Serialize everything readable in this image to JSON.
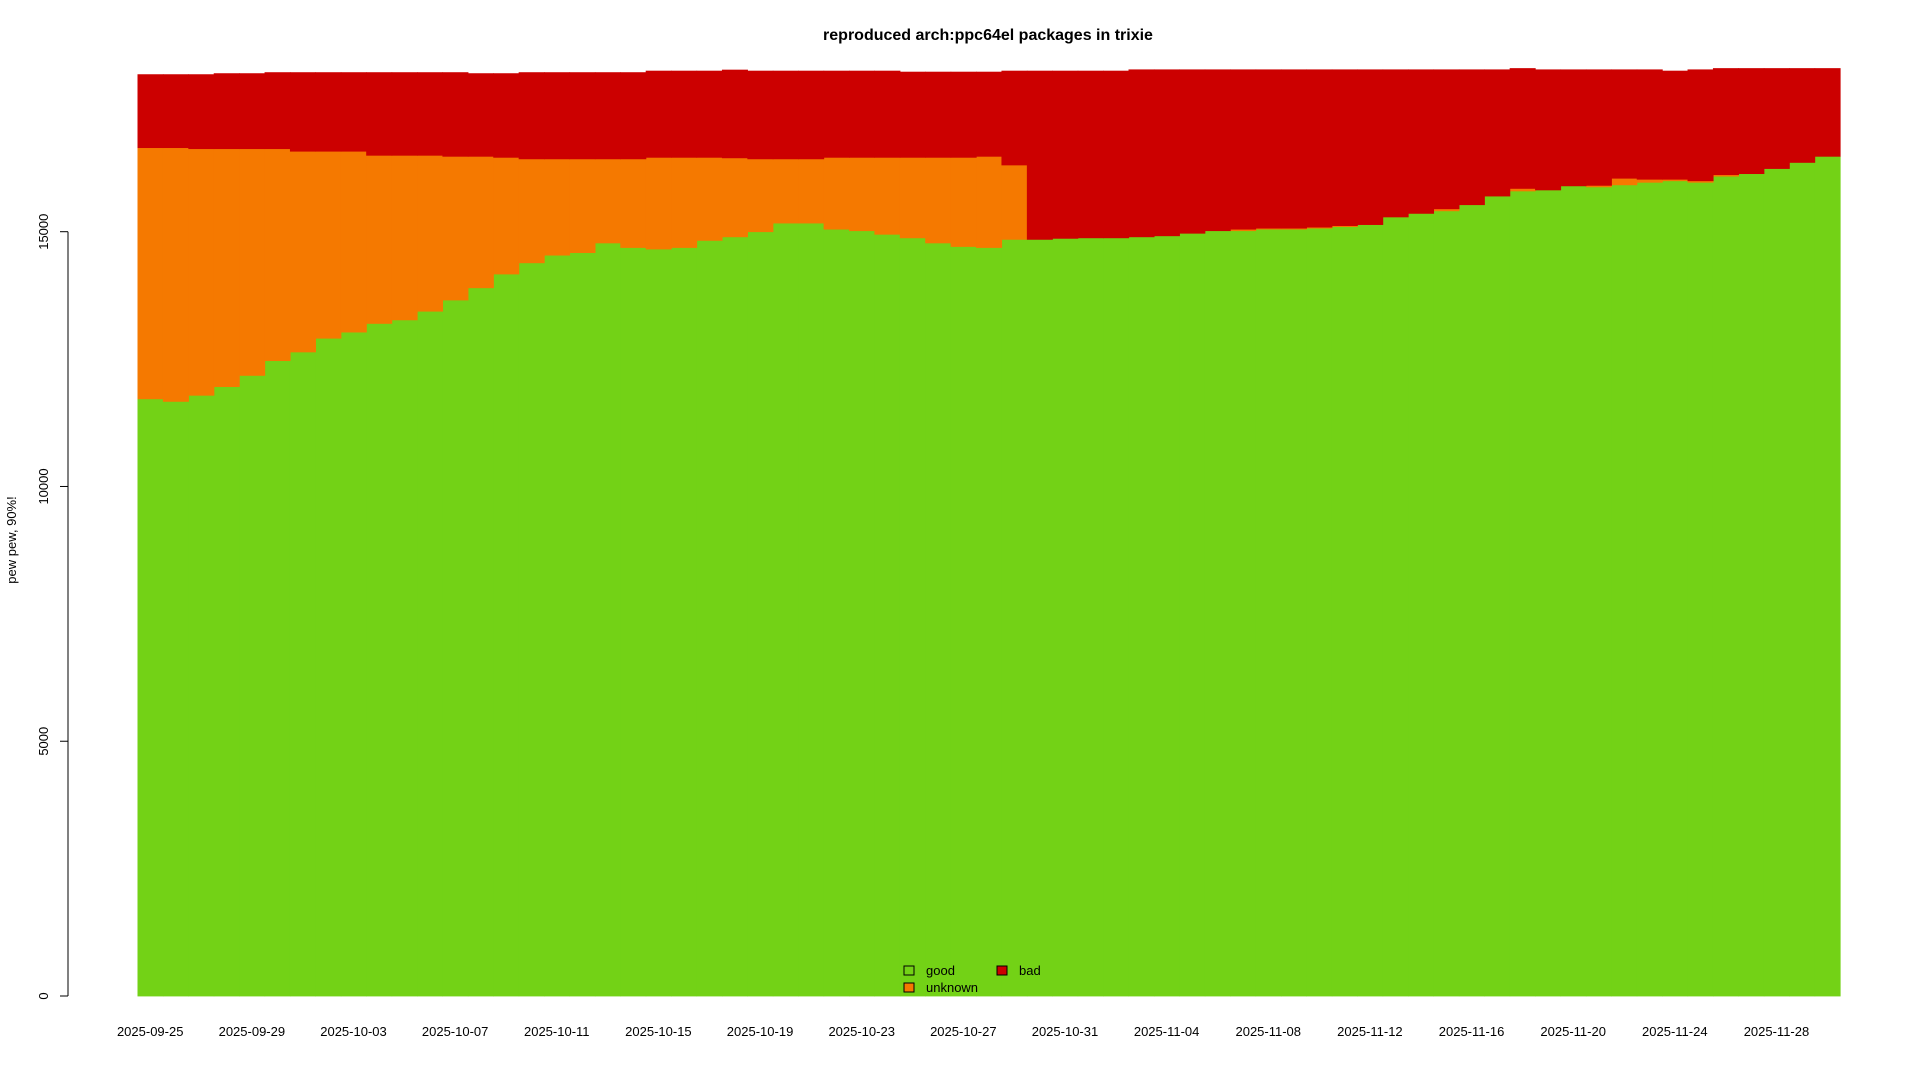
{
  "chart_data": {
    "type": "bar",
    "stacked": true,
    "title": "reproduced arch:ppc64el packages in trixie",
    "xlabel": "",
    "ylabel": "pew pew, 90%!",
    "ylim": [
      0,
      18300
    ],
    "yticks": [
      0,
      5000,
      10000,
      15000
    ],
    "start_date": "2025-09-25",
    "days": 67,
    "xtick_labels": [
      "2025-09-25",
      "2025-09-29",
      "2025-10-03",
      "2025-10-07",
      "2025-10-11",
      "2025-10-15",
      "2025-10-19",
      "2025-10-23",
      "2025-10-27",
      "2025-10-31",
      "2025-11-04",
      "2025-11-08",
      "2025-11-12",
      "2025-11-16",
      "2025-11-20",
      "2025-11-24",
      "2025-11-28"
    ],
    "legend_position": "bottom-center",
    "series": [
      {
        "name": "good",
        "color": "#73d216",
        "values": [
          11720,
          11670,
          11790,
          11960,
          12180,
          12470,
          12640,
          12910,
          13030,
          13200,
          13270,
          13440,
          13660,
          13900,
          14170,
          14390,
          14540,
          14590,
          14780,
          14690,
          14660,
          14690,
          14830,
          14900,
          15000,
          15170,
          15170,
          15050,
          15020,
          14950,
          14880,
          14780,
          14710,
          14690,
          14850,
          14850,
          14870,
          14880,
          14880,
          14900,
          14920,
          14970,
          15020,
          15020,
          15050,
          15050,
          15070,
          15100,
          15140,
          15290,
          15360,
          15410,
          15530,
          15700,
          15800,
          15820,
          15900,
          15880,
          15920,
          15970,
          16000,
          15970,
          16090,
          16140,
          16240,
          16360,
          16480
        ]
      },
      {
        "name": "unknown",
        "color": "#f57900",
        "values": [
          4930,
          4980,
          4840,
          4670,
          4450,
          4160,
          3940,
          3670,
          3550,
          3300,
          3230,
          3060,
          2820,
          2580,
          2290,
          2040,
          1890,
          1840,
          1650,
          1740,
          1800,
          1770,
          1630,
          1550,
          1430,
          1260,
          1260,
          1410,
          1440,
          1510,
          1580,
          1680,
          1750,
          1790,
          1460,
          0,
          0,
          0,
          0,
          0,
          0,
          0,
          0,
          30,
          20,
          20,
          20,
          20,
          0,
          0,
          0,
          40,
          0,
          0,
          50,
          0,
          0,
          30,
          130,
          60,
          30,
          30,
          30,
          0,
          0,
          0,
          0
        ]
      },
      {
        "name": "bad",
        "color": "#cc0000",
        "values": [
          1440,
          1440,
          1460,
          1480,
          1480,
          1500,
          1550,
          1550,
          1550,
          1630,
          1630,
          1630,
          1650,
          1630,
          1650,
          1700,
          1700,
          1700,
          1700,
          1700,
          1700,
          1700,
          1700,
          1730,
          1730,
          1730,
          1730,
          1700,
          1700,
          1700,
          1680,
          1680,
          1680,
          1660,
          1850,
          3310,
          3290,
          3280,
          3280,
          3285,
          3265,
          3215,
          3165,
          3135,
          3115,
          3115,
          3095,
          3065,
          3045,
          2895,
          2825,
          2735,
          2655,
          2485,
          2360,
          2365,
          2285,
          2275,
          2135,
          2155,
          2130,
          2185,
          2090,
          2070,
          1970,
          1850,
          1730
        ]
      }
    ]
  }
}
